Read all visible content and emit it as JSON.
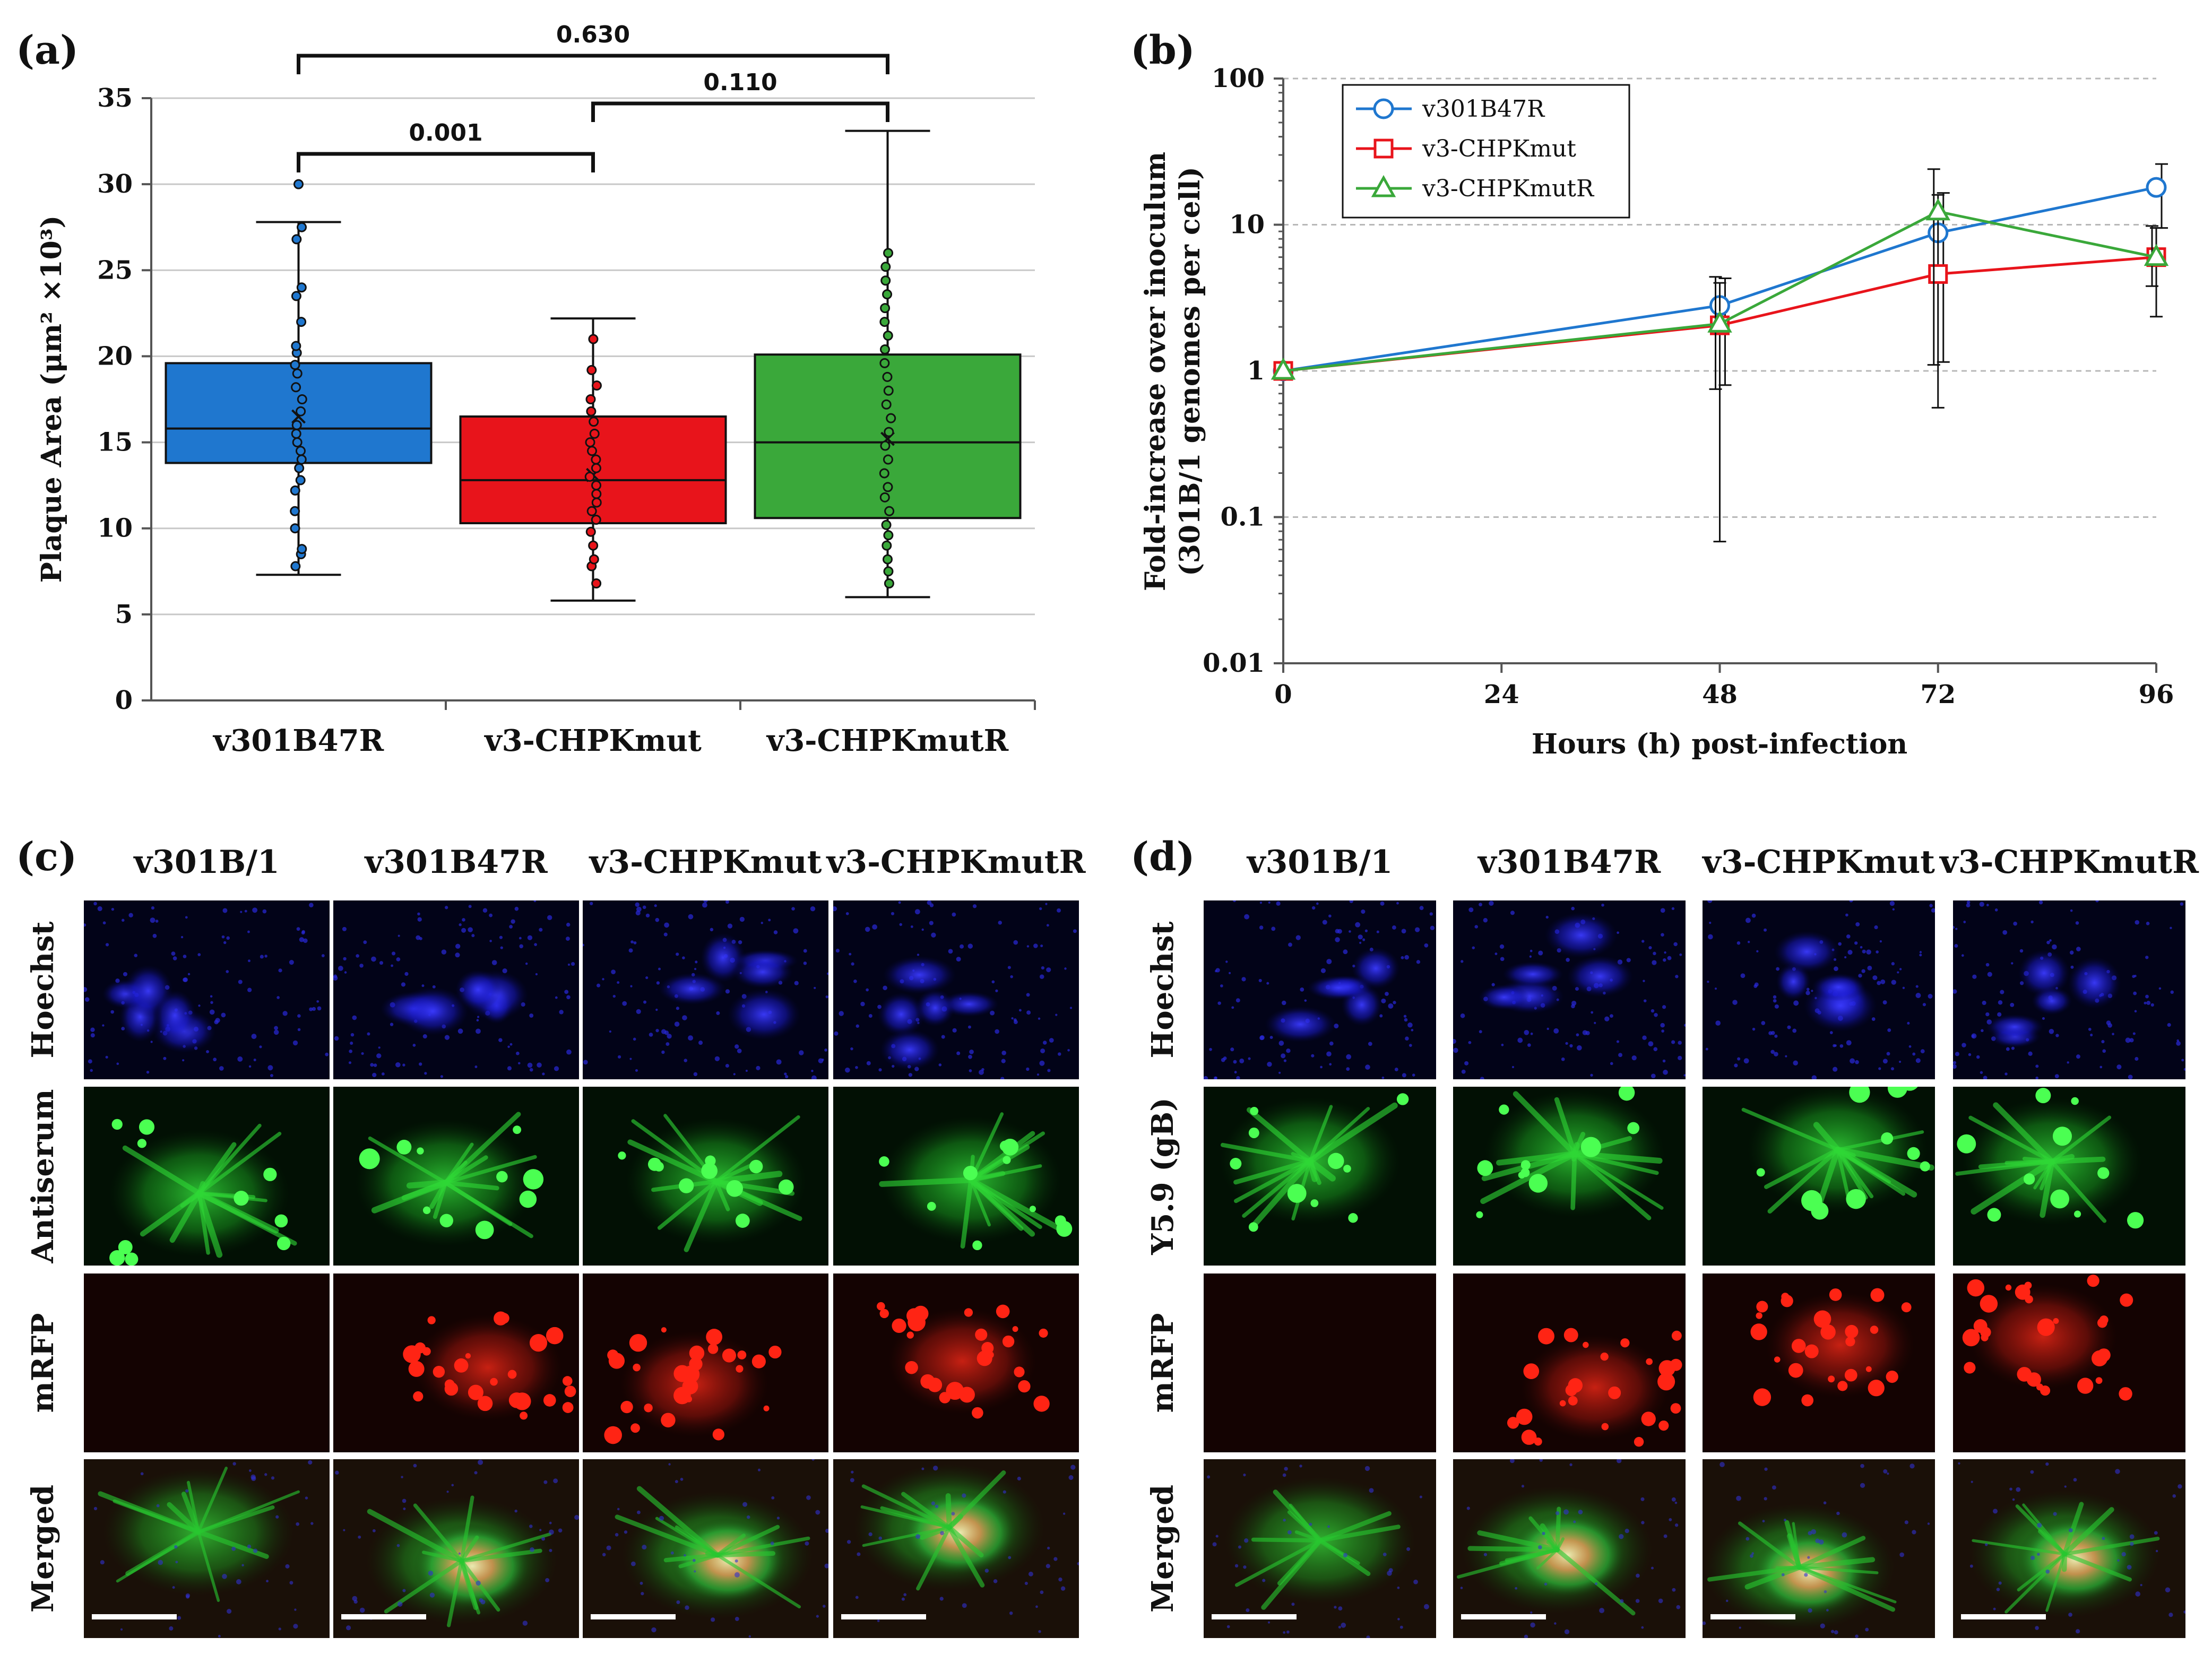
{
  "panels": {
    "a": "(a)",
    "b": "(b)",
    "c": "(c)",
    "d": "(d)"
  },
  "chart_data": [
    {
      "type": "box",
      "id": "a",
      "ylabel": "Plaque Area (μm² ×10³)",
      "ylim": [
        0,
        35
      ],
      "yticks": [
        "0",
        "5",
        "10",
        "15",
        "20",
        "25",
        "30",
        "35"
      ],
      "grid": true,
      "categories": [
        "v301B47R",
        "v3-CHPKmut",
        "v3-CHPKmutR"
      ],
      "colors": [
        "#1f77cf",
        "#e8141b",
        "#3aa83a"
      ],
      "boxes": [
        {
          "min": 7.3,
          "q1": 13.8,
          "median": 15.8,
          "mean": 16.5,
          "q3": 19.6,
          "max": 27.8,
          "outliers": [
            30.0
          ],
          "points": [
            7.8,
            8.5,
            8.8,
            10.0,
            11.0,
            12.2,
            12.8,
            13.5,
            14.0,
            14.5,
            15.0,
            15.5,
            16.0,
            16.8,
            17.5,
            18.2,
            19.0,
            19.5,
            20.2,
            20.6,
            22.0,
            23.5,
            24.0,
            26.8,
            27.5
          ]
        },
        {
          "min": 5.8,
          "q1": 10.3,
          "median": 12.8,
          "mean": 13.1,
          "q3": 16.5,
          "max": 22.2,
          "outliers": [],
          "points": [
            6.8,
            7.8,
            8.2,
            9.0,
            9.8,
            10.5,
            11.0,
            11.5,
            12.0,
            12.5,
            13.0,
            13.5,
            14.0,
            14.5,
            15.0,
            15.5,
            16.2,
            16.8,
            17.5,
            18.3,
            19.2,
            21.0
          ]
        },
        {
          "min": 6.0,
          "q1": 10.6,
          "median": 15.0,
          "mean": 15.2,
          "q3": 20.1,
          "max": 33.1,
          "outliers": [],
          "points": [
            6.8,
            7.5,
            8.2,
            9.0,
            9.6,
            10.2,
            11.0,
            11.8,
            12.4,
            13.2,
            14.0,
            14.8,
            15.6,
            16.4,
            17.2,
            18.0,
            18.8,
            19.6,
            20.4,
            21.2,
            22.0,
            22.8,
            23.6,
            24.4,
            25.2,
            26.0
          ]
        }
      ],
      "comparisons": [
        {
          "from": 0,
          "to": 1,
          "p": "0.001",
          "level": 1
        },
        {
          "from": 1,
          "to": 2,
          "p": "0.110",
          "level": 2
        },
        {
          "from": 0,
          "to": 2,
          "p": "0.630",
          "level": 3
        }
      ]
    },
    {
      "type": "line",
      "id": "b",
      "yscale": "log",
      "ylim": [
        0.01,
        100
      ],
      "yticks": [
        "100",
        "10",
        "1",
        "0.1",
        "0.01"
      ],
      "ytick_values": [
        100,
        10,
        1,
        0.1,
        0.01
      ],
      "xlim": [
        0,
        96
      ],
      "x": [
        0,
        48,
        72,
        96
      ],
      "xticks": [
        "0",
        "24",
        "48",
        "72",
        "96"
      ],
      "xtick_values": [
        0,
        24,
        48,
        72,
        96
      ],
      "xlabel": "Hours (h) post-infection",
      "ylabel": "Fold-increase over inoculum",
      "ylabel2": "(301B/1 genomes per cell)",
      "grid": true,
      "legend_position": "top-left",
      "series": [
        {
          "name": "v301B47R",
          "color": "#1f77cf",
          "marker": "circle",
          "values": [
            1,
            2.8,
            8.8,
            18.0
          ],
          "err_low": [
            1,
            0.8,
            1.15,
            9.5
          ],
          "err_high": [
            1,
            4.3,
            16.5,
            26.0
          ]
        },
        {
          "name": "v3-CHPKmut",
          "color": "#e8141b",
          "marker": "square",
          "values": [
            1,
            2.05,
            4.6,
            6.0
          ],
          "err_low": [
            1,
            0.068,
            0.56,
            2.35
          ],
          "err_high": [
            1,
            4.0,
            16.0,
            9.5
          ]
        },
        {
          "name": "v3-CHPKmutR",
          "color": "#3aa83a",
          "marker": "triangle",
          "values": [
            1,
            2.1,
            12.3,
            6.0
          ],
          "err_low": [
            1,
            0.75,
            1.1,
            3.8
          ],
          "err_high": [
            1,
            4.4,
            24.0,
            9.8
          ]
        }
      ]
    }
  ],
  "microscopy_c": {
    "columns": [
      "v301B/1",
      "v301B47R",
      "v3-CHPKmut",
      "v3-CHPKmutR"
    ],
    "rows": [
      "Hoechst",
      "Antiserum",
      "mRFP",
      "Merged"
    ]
  },
  "microscopy_d": {
    "columns": [
      "v301B/1",
      "v301B47R",
      "v3-CHPKmut",
      "v3-CHPKmutR"
    ],
    "rows": [
      "Hoechst",
      "Y5.9 (gB)",
      "mRFP",
      "Merged"
    ]
  },
  "colors": {
    "hoechst": "#0a0aa0",
    "green": "#22d22a",
    "red": "#e81a10",
    "bg": "#02060a"
  }
}
